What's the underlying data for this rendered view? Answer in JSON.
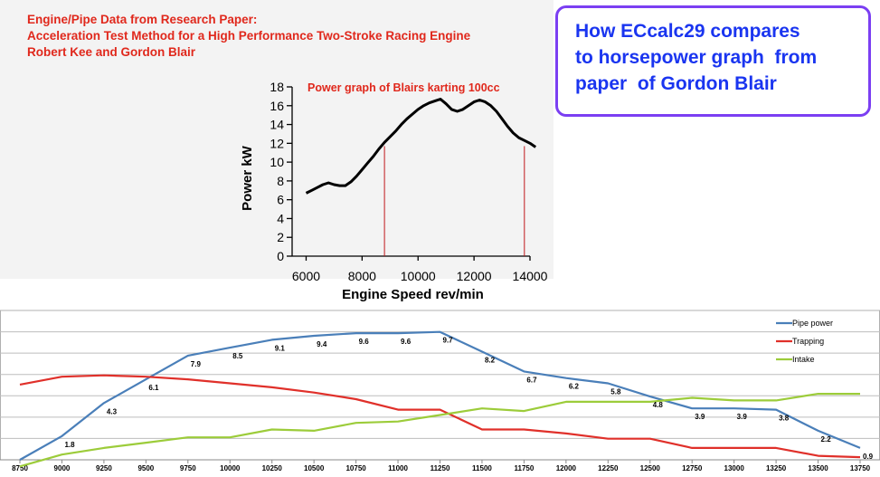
{
  "header": {
    "lines": [
      "Engine/Pipe Data from Research Paper:",
      "Acceleration Test Method for a High Performance Two-Stroke Racing Engine",
      "Robert Kee and Gordon Blair"
    ]
  },
  "callout": {
    "text": "How ECcalc29 compares\nto horsepower graph  from\npaper  of Gordon Blair"
  },
  "chart_data": [
    {
      "type": "line",
      "title": "Power graph of Blairs karting 100cc",
      "xlabel": "Engine Speed rev/min",
      "ylabel": "Power kW",
      "xlim": [
        5500,
        14000
      ],
      "ylim": [
        0,
        18
      ],
      "x_ticks": [
        6000,
        8000,
        10000,
        12000,
        14000
      ],
      "x_tick_labels": [
        "6000",
        "8000",
        "10000",
        "12000",
        "14000"
      ],
      "y_ticks": [
        0,
        2,
        4,
        6,
        8,
        10,
        12,
        14,
        16,
        18
      ],
      "y_tick_labels": [
        "0",
        "2",
        "4",
        "6",
        "8",
        "10",
        "12",
        "14",
        "16",
        "18"
      ],
      "colors": {
        "curve": "#000000",
        "markers": "#c0181c",
        "title": "#e0281c"
      },
      "series": [
        {
          "x": [
            6000,
            6200,
            6400,
            6600,
            6800,
            7000,
            7200,
            7400,
            7600,
            7800,
            8000,
            8200,
            8400,
            8600,
            8800,
            9000,
            9200,
            9400,
            9600,
            9800,
            10000,
            10200,
            10400,
            10600,
            10800,
            11000,
            11200,
            11400,
            11600,
            11800,
            12000,
            12200,
            12400,
            12600,
            12800,
            13000,
            13200,
            13400,
            13600,
            13800,
            14000,
            14200
          ],
          "values": [
            6.7,
            7.0,
            7.3,
            7.6,
            7.8,
            7.6,
            7.5,
            7.5,
            7.9,
            8.5,
            9.2,
            9.9,
            10.6,
            11.4,
            12.1,
            12.7,
            13.3,
            14.0,
            14.6,
            15.1,
            15.6,
            16.0,
            16.3,
            16.5,
            16.7,
            16.2,
            15.6,
            15.4,
            15.6,
            16.0,
            16.4,
            16.6,
            16.4,
            16.0,
            15.4,
            14.6,
            13.8,
            13.1,
            12.6,
            12.3,
            12.0,
            11.6
          ]
        }
      ],
      "vertical_markers": [
        8800,
        13800
      ]
    },
    {
      "type": "line",
      "x": [
        8750,
        9000,
        9250,
        9500,
        9750,
        10000,
        10250,
        10500,
        10750,
        11000,
        11250,
        11500,
        11750,
        12000,
        12250,
        12500,
        12750,
        13000,
        13250,
        13500,
        13750
      ],
      "x_tick_labels": [
        "8750",
        "9000",
        "9250",
        "9500",
        "9750",
        "10000",
        "10250",
        "10500",
        "10750",
        "11000",
        "11250",
        "11500",
        "11750",
        "12000",
        "12250",
        "12500",
        "12750",
        "13000",
        "13250",
        "13500",
        "13750"
      ],
      "ylim": [
        0,
        10.5
      ],
      "series": [
        {
          "name": "Pipe power",
          "color": "#4a7fb9",
          "values": [
            0.0,
            1.8,
            4.3,
            6.1,
            7.9,
            8.5,
            9.1,
            9.4,
            9.6,
            9.6,
            9.7,
            8.2,
            6.7,
            6.2,
            5.8,
            4.8,
            3.9,
            3.9,
            3.8,
            2.2,
            0.9
          ],
          "labels": [
            "",
            "1.8",
            "4.3",
            "6.1",
            "7.9",
            "8.5",
            "9.1",
            "9.4",
            "9.6",
            "9.6",
            "9.7",
            "8.2",
            "6.7",
            "6.2",
            "5.8",
            "4.8",
            "3.9",
            "3.9",
            "3.8",
            "2.2",
            "0.9"
          ]
        },
        {
          "name": "Trapping",
          "color": "#e0302a",
          "values": [
            5.7,
            6.3,
            6.4,
            6.3,
            6.1,
            5.8,
            5.5,
            5.1,
            4.6,
            3.8,
            3.8,
            2.3,
            2.3,
            2.0,
            1.6,
            1.6,
            0.9,
            0.9,
            0.9,
            0.3,
            0.2
          ]
        },
        {
          "name": "Intake",
          "color": "#9ccc3a",
          "values": [
            -0.5,
            0.4,
            0.9,
            1.3,
            1.7,
            1.7,
            2.3,
            2.2,
            2.8,
            2.9,
            3.4,
            3.9,
            3.7,
            4.4,
            4.4,
            4.4,
            4.7,
            4.5,
            4.5,
            5.0,
            5.0
          ]
        }
      ],
      "legend": {
        "position": "top-right"
      },
      "grid": "horizontal"
    }
  ]
}
